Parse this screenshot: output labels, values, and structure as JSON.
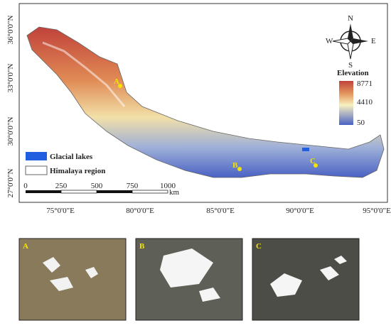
{
  "map": {
    "lat_labels": [
      "36°0'0\"N",
      "33°0'0\"N",
      "30°0'0\"N",
      "27°0'0\"N"
    ],
    "lon_labels": [
      "75°0'0\"E",
      "80°0'0\"E",
      "85°0'0\"E",
      "90°0'0\"E",
      "95°0'0\"E"
    ],
    "compass": {
      "n": "N",
      "s": "S",
      "e": "E",
      "w": "W"
    },
    "elevation_legend": {
      "title": "Elevation",
      "max": "8771",
      "mid": "4410",
      "min": "50"
    },
    "legend": [
      "Glacial lakes",
      "Himalaya region"
    ],
    "scale_bar": {
      "labels": [
        "0",
        "250",
        "500",
        "750",
        "1000"
      ],
      "unit": "km"
    },
    "sites": [
      "A",
      "B",
      "C"
    ]
  },
  "panels": [
    "A",
    "B",
    "C"
  ]
}
